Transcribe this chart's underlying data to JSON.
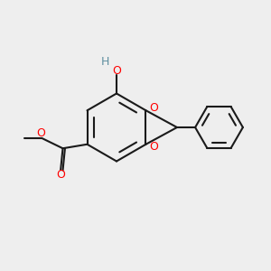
{
  "bg_color": "#eeeeee",
  "bond_color": "#1a1a1a",
  "oxygen_color": "#ff0000",
  "hydrogen_color": "#5f8fa0",
  "line_width": 1.5,
  "figsize": [
    3.0,
    3.0
  ],
  "dpi": 100,
  "xlim": [
    0,
    10
  ],
  "ylim": [
    0,
    10
  ]
}
